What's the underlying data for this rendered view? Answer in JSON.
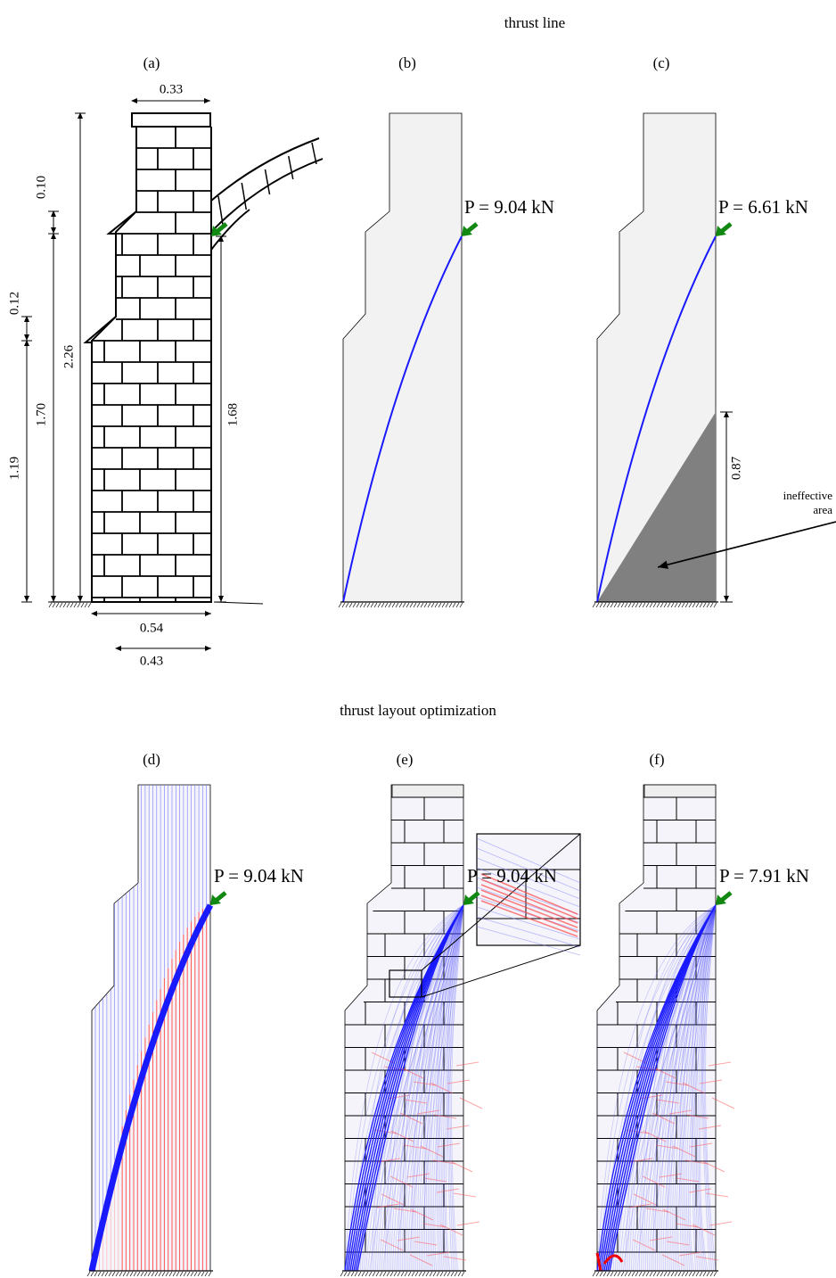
{
  "sections": [
    {
      "title": "thrust line",
      "panels": [
        {
          "label": "(a)",
          "dimensions": [
            "0.33",
            "0.10",
            "0.12",
            "2.26",
            "1.70",
            "1.19",
            "1.68",
            "0.54",
            "0.43"
          ]
        },
        {
          "label": "(b)",
          "load": "P = 9.04 kN"
        },
        {
          "label": "(c)",
          "load": "P = 6.61 kN",
          "dimension": "0.87",
          "annotation": [
            "ineffective",
            "area"
          ]
        }
      ]
    },
    {
      "title": "thrust layout optimization",
      "panels": [
        {
          "label": "(d)",
          "load": "P = 9.04 kN"
        },
        {
          "label": "(e)",
          "load": "P = 9.04 kN"
        },
        {
          "label": "(f)",
          "load": "P = 7.91 kN"
        }
      ]
    }
  ]
}
